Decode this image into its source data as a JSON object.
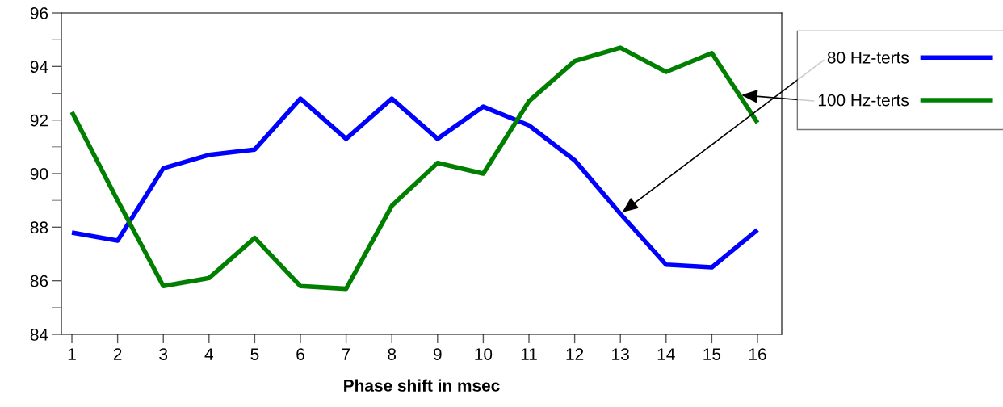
{
  "chart_data": {
    "type": "line",
    "xlabel": "Phase shift in msec",
    "x": [
      1,
      2,
      3,
      4,
      5,
      6,
      7,
      8,
      9,
      10,
      11,
      12,
      13,
      14,
      15,
      16
    ],
    "series": [
      {
        "name": "80 Hz-terts",
        "color": "#0000ff",
        "values": [
          87.8,
          87.5,
          90.2,
          90.7,
          90.9,
          92.8,
          91.3,
          92.8,
          91.3,
          92.5,
          91.8,
          90.5,
          88.5,
          86.6,
          86.5,
          87.9
        ]
      },
      {
        "name": "100 Hz-terts",
        "color": "#007f00",
        "values": [
          92.3,
          89.0,
          85.8,
          86.1,
          87.6,
          85.8,
          85.7,
          88.8,
          90.4,
          90.0,
          92.7,
          94.2,
          94.7,
          93.8,
          94.5,
          91.9
        ]
      }
    ],
    "xlim": [
      0.77,
      16.53
    ],
    "xticks": [
      1,
      2,
      3,
      4,
      5,
      6,
      7,
      8,
      9,
      10,
      11,
      12,
      13,
      14,
      15,
      16
    ],
    "ylim": [
      84,
      96
    ],
    "yticks": [
      84,
      86,
      88,
      90,
      92,
      94,
      96
    ],
    "grid": false,
    "legend": "right",
    "marker": "none",
    "line_style": "solid"
  }
}
